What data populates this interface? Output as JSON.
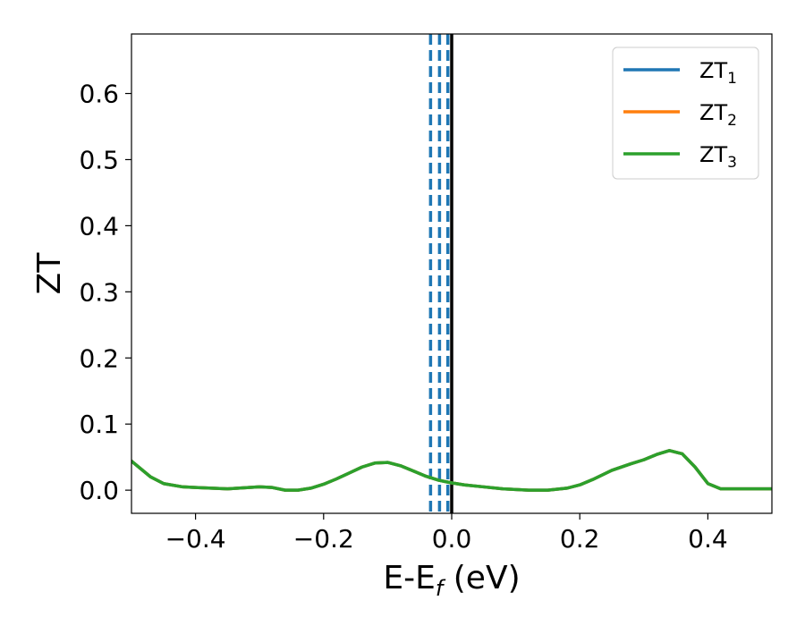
{
  "chart_data": {
    "type": "line",
    "xlabel": "E-E",
    "xlabel_sub": "f",
    "xlabel_unit": " (eV)",
    "ylabel": "ZT",
    "xlim": [
      -0.5,
      0.5
    ],
    "ylim": [
      -0.035,
      0.69
    ],
    "xticks": [
      -0.4,
      -0.2,
      0.0,
      0.2,
      0.4
    ],
    "xtick_labels": [
      "−0.4",
      "−0.2",
      "0.0",
      "0.2",
      "0.4"
    ],
    "yticks": [
      0.0,
      0.1,
      0.2,
      0.3,
      0.4,
      0.5,
      0.6
    ],
    "ytick_labels": [
      "0.0",
      "0.1",
      "0.2",
      "0.3",
      "0.4",
      "0.5",
      "0.6"
    ],
    "grid": false,
    "legend_position": "top-right",
    "vlines": [
      {
        "x": -0.033,
        "style": "dashed",
        "color": "#1f77b4"
      },
      {
        "x": -0.019,
        "style": "dashed",
        "color": "#1f77b4"
      },
      {
        "x": -0.006,
        "style": "dashed",
        "color": "#1f77b4"
      },
      {
        "x": 0.0,
        "style": "solid",
        "color": "#000000"
      }
    ],
    "x": [
      -0.5,
      -0.47,
      -0.45,
      -0.42,
      -0.4,
      -0.35,
      -0.3,
      -0.28,
      -0.26,
      -0.24,
      -0.22,
      -0.2,
      -0.18,
      -0.16,
      -0.14,
      -0.12,
      -0.1,
      -0.08,
      -0.06,
      -0.04,
      -0.02,
      0.0,
      0.02,
      0.05,
      0.08,
      0.1,
      0.12,
      0.15,
      0.18,
      0.2,
      0.22,
      0.25,
      0.28,
      0.3,
      0.32,
      0.34,
      0.36,
      0.38,
      0.4,
      0.42,
      0.45,
      0.5
    ],
    "series": [
      {
        "name": "ZT",
        "sub": "1",
        "color": "#1f77b4",
        "values": [
          0.044,
          0.02,
          0.01,
          0.005,
          0.004,
          0.002,
          0.005,
          0.004,
          0.0,
          0.0,
          0.003,
          0.009,
          0.017,
          0.026,
          0.035,
          0.041,
          0.042,
          0.037,
          0.029,
          0.021,
          0.015,
          0.011,
          0.008,
          0.005,
          0.002,
          0.001,
          0.0,
          0.0,
          0.003,
          0.008,
          0.016,
          0.03,
          0.04,
          0.046,
          0.054,
          0.06,
          0.055,
          0.035,
          0.01,
          0.002,
          0.002,
          0.002
        ]
      },
      {
        "name": "ZT",
        "sub": "2",
        "color": "#ff7f0e",
        "values": [
          0.044,
          0.02,
          0.01,
          0.005,
          0.004,
          0.002,
          0.005,
          0.004,
          0.0,
          0.0,
          0.003,
          0.009,
          0.017,
          0.026,
          0.035,
          0.041,
          0.042,
          0.037,
          0.029,
          0.021,
          0.015,
          0.011,
          0.008,
          0.005,
          0.002,
          0.001,
          0.0,
          0.0,
          0.003,
          0.008,
          0.016,
          0.03,
          0.04,
          0.046,
          0.054,
          0.06,
          0.055,
          0.035,
          0.01,
          0.002,
          0.002,
          0.002
        ]
      },
      {
        "name": "ZT",
        "sub": "3",
        "color": "#2ca02c",
        "values": [
          0.044,
          0.02,
          0.01,
          0.005,
          0.004,
          0.002,
          0.005,
          0.004,
          0.0,
          0.0,
          0.003,
          0.009,
          0.017,
          0.026,
          0.035,
          0.041,
          0.042,
          0.037,
          0.029,
          0.021,
          0.015,
          0.011,
          0.008,
          0.005,
          0.002,
          0.001,
          0.0,
          0.0,
          0.003,
          0.008,
          0.016,
          0.03,
          0.04,
          0.046,
          0.054,
          0.06,
          0.055,
          0.035,
          0.01,
          0.002,
          0.002,
          0.002
        ]
      }
    ]
  }
}
